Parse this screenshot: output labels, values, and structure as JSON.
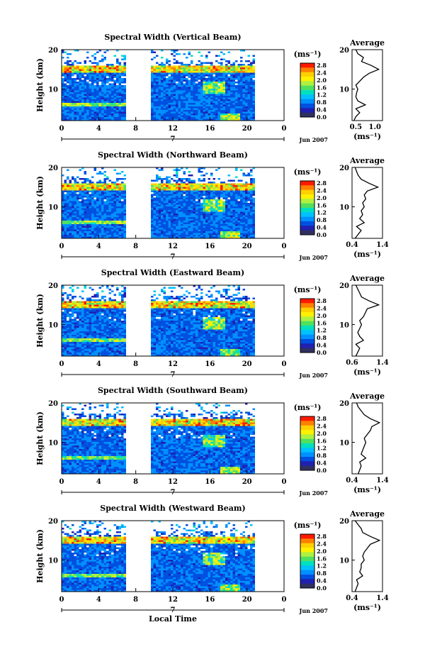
{
  "xlabel": "Local Time",
  "colorbar": {
    "unit": "(ms⁻¹)",
    "ticks": [
      "2.8",
      "2.4",
      "2.0",
      "1.6",
      "1.2",
      "0.8",
      "0.4",
      "0.0"
    ],
    "colors": [
      "#ff1a00",
      "#ff8000",
      "#ffd000",
      "#fff000",
      "#b0f040",
      "#50e060",
      "#00e0c0",
      "#00c0ff",
      "#0090ff",
      "#0050e0",
      "#2020b0",
      "#303060"
    ]
  },
  "chart_data": [
    {
      "type": "heatmap",
      "title": "Spectral Width (Vertical Beam)",
      "ylabel": "Height (km)",
      "ylim": [
        2,
        20
      ],
      "yticks": [
        "20",
        "10"
      ],
      "xlim": [
        0,
        24
      ],
      "xticks": [
        "0",
        "4",
        "8",
        "12",
        "16",
        "20",
        "0"
      ],
      "date": {
        "day": "7",
        "month_year": "Jun 2007"
      },
      "data_gap_hours": [
        6.8,
        9.5
      ],
      "data_end_hour": 20.7,
      "profile": {
        "title": "Average",
        "xlabel": "(ms⁻¹)",
        "xticks": [
          "0.5",
          "1.0"
        ],
        "xlim": [
          0.4,
          1.2
        ],
        "yticks": [
          "20",
          "10"
        ],
        "points": [
          [
            0.45,
            2
          ],
          [
            0.5,
            3
          ],
          [
            0.6,
            4
          ],
          [
            0.5,
            5
          ],
          [
            0.75,
            6
          ],
          [
            0.55,
            7
          ],
          [
            0.5,
            8
          ],
          [
            0.52,
            9
          ],
          [
            0.55,
            10
          ],
          [
            0.5,
            11
          ],
          [
            0.6,
            12
          ],
          [
            0.7,
            13
          ],
          [
            0.85,
            14
          ],
          [
            1.1,
            15
          ],
          [
            0.9,
            16
          ],
          [
            0.65,
            17
          ],
          [
            0.7,
            18
          ],
          [
            0.55,
            19
          ],
          [
            0.5,
            20
          ]
        ]
      }
    },
    {
      "type": "heatmap",
      "title": "Spectral Width (Northward Beam)",
      "ylabel": "Height (km)",
      "ylim": [
        2,
        20
      ],
      "yticks": [
        "20",
        "10"
      ],
      "xlim": [
        0,
        24
      ],
      "xticks": [
        "0",
        "4",
        "8",
        "12",
        "16",
        "20",
        "0"
      ],
      "date": {
        "day": "7",
        "month_year": "Jun 2007"
      },
      "data_gap_hours": [
        6.8,
        9.5
      ],
      "data_end_hour": 20.7,
      "profile": {
        "title": "Average",
        "xlabel": "(ms⁻¹)",
        "xticks": [
          "0.4",
          "1.4"
        ],
        "xlim": [
          0.4,
          1.4
        ],
        "yticks": [
          "20",
          "10"
        ],
        "points": [
          [
            0.5,
            2
          ],
          [
            0.6,
            3
          ],
          [
            0.7,
            4
          ],
          [
            0.55,
            5
          ],
          [
            0.8,
            6
          ],
          [
            0.65,
            7
          ],
          [
            0.75,
            8
          ],
          [
            0.7,
            9
          ],
          [
            0.8,
            10
          ],
          [
            0.75,
            11
          ],
          [
            0.85,
            12
          ],
          [
            0.8,
            13
          ],
          [
            0.9,
            14
          ],
          [
            1.25,
            15
          ],
          [
            0.95,
            16
          ],
          [
            0.7,
            17
          ],
          [
            0.6,
            18
          ],
          [
            0.55,
            19
          ],
          [
            0.5,
            20
          ]
        ]
      }
    },
    {
      "type": "heatmap",
      "title": "Spectral Width (Eastward Beam)",
      "ylabel": "Height (km)",
      "ylim": [
        2,
        20
      ],
      "yticks": [
        "20",
        "10"
      ],
      "xlim": [
        0,
        24
      ],
      "xticks": [
        "0",
        "4",
        "8",
        "12",
        "16",
        "20",
        "0"
      ],
      "date": {
        "day": "7",
        "month_year": "Jun 2007"
      },
      "data_gap_hours": [
        6.8,
        9.5
      ],
      "data_end_hour": 20.7,
      "profile": {
        "title": "Average",
        "xlabel": "(ms⁻¹)",
        "xticks": [
          "0.6",
          "1.4"
        ],
        "xlim": [
          0.6,
          1.4
        ],
        "yticks": [
          "20",
          "10"
        ],
        "points": [
          [
            0.7,
            2
          ],
          [
            0.75,
            3
          ],
          [
            0.8,
            4
          ],
          [
            0.7,
            5
          ],
          [
            0.9,
            6
          ],
          [
            0.8,
            7
          ],
          [
            0.75,
            8
          ],
          [
            0.8,
            9
          ],
          [
            0.85,
            10
          ],
          [
            0.8,
            11
          ],
          [
            0.9,
            12
          ],
          [
            0.95,
            13
          ],
          [
            1.0,
            14
          ],
          [
            1.3,
            15
          ],
          [
            1.05,
            16
          ],
          [
            0.85,
            17
          ],
          [
            0.8,
            18
          ],
          [
            0.75,
            19
          ],
          [
            0.7,
            20
          ]
        ]
      }
    },
    {
      "type": "heatmap",
      "title": "Spectral Width (Southward Beam)",
      "ylabel": "Height (km)",
      "ylim": [
        2,
        20
      ],
      "yticks": [
        "20",
        "10"
      ],
      "xlim": [
        0,
        24
      ],
      "xticks": [
        "0",
        "4",
        "8",
        "12",
        "16",
        "20",
        "0"
      ],
      "date": {
        "day": "7",
        "month_year": "Jun 2007"
      },
      "data_gap_hours": [
        6.8,
        9.5
      ],
      "data_end_hour": 20.7,
      "profile": {
        "title": "Average",
        "xlabel": "(ms⁻¹)",
        "xticks": [
          "0.4",
          "1.4"
        ],
        "xlim": [
          0.4,
          1.4
        ],
        "yticks": [
          "20",
          "10"
        ],
        "points": [
          [
            0.6,
            2
          ],
          [
            0.65,
            3
          ],
          [
            0.7,
            4
          ],
          [
            0.65,
            5
          ],
          [
            0.85,
            6
          ],
          [
            0.7,
            7
          ],
          [
            0.75,
            8
          ],
          [
            0.8,
            9
          ],
          [
            0.85,
            10
          ],
          [
            0.8,
            11
          ],
          [
            0.9,
            12
          ],
          [
            1.0,
            13
          ],
          [
            1.05,
            14
          ],
          [
            1.3,
            15
          ],
          [
            1.0,
            16
          ],
          [
            0.8,
            17
          ],
          [
            0.7,
            18
          ],
          [
            0.6,
            19
          ],
          [
            0.55,
            20
          ]
        ]
      }
    },
    {
      "type": "heatmap",
      "title": "Spectral Width (Westward Beam)",
      "ylabel": "Height (km)",
      "ylim": [
        2,
        20
      ],
      "yticks": [
        "20",
        "10"
      ],
      "xlim": [
        0,
        24
      ],
      "xticks": [
        "0",
        "4",
        "8",
        "12",
        "16",
        "20",
        "0"
      ],
      "date": {
        "day": "7",
        "month_year": "Jun 2007"
      },
      "data_gap_hours": [
        6.8,
        9.5
      ],
      "data_end_hour": 20.7,
      "profile": {
        "title": "Average",
        "xlabel": "(ms⁻¹)",
        "xticks": [
          "0.4",
          "1.4"
        ],
        "xlim": [
          0.4,
          1.4
        ],
        "yticks": [
          "20",
          "10"
        ],
        "points": [
          [
            0.5,
            2
          ],
          [
            0.55,
            3
          ],
          [
            0.6,
            4
          ],
          [
            0.55,
            5
          ],
          [
            0.75,
            6
          ],
          [
            0.65,
            7
          ],
          [
            0.7,
            8
          ],
          [
            0.7,
            9
          ],
          [
            0.8,
            10
          ],
          [
            0.75,
            11
          ],
          [
            0.8,
            12
          ],
          [
            0.9,
            13
          ],
          [
            1.0,
            14
          ],
          [
            1.3,
            15
          ],
          [
            1.0,
            16
          ],
          [
            0.75,
            17
          ],
          [
            0.7,
            18
          ],
          [
            0.6,
            19
          ],
          [
            0.5,
            20
          ]
        ]
      }
    }
  ]
}
